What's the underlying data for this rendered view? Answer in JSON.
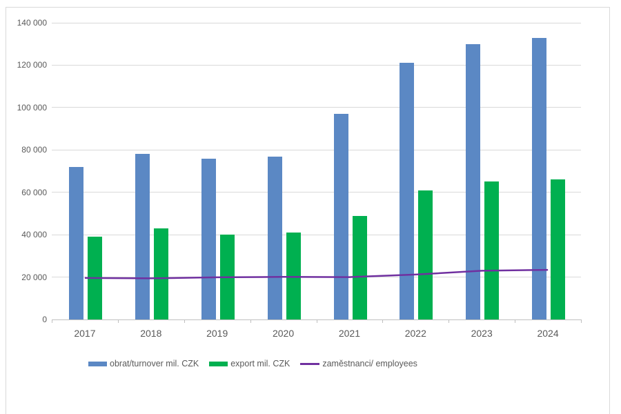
{
  "chart_data": {
    "type": "bar",
    "subtype": "grouped-bar-with-line-combo",
    "title": "",
    "categories": [
      "2017",
      "2018",
      "2019",
      "2020",
      "2021",
      "2022",
      "2023",
      "2024"
    ],
    "series": [
      {
        "name": "obrat/turnover mil. CZK",
        "kind": "bar",
        "color": "#5b88c4",
        "values": [
          72000,
          78000,
          76000,
          77000,
          97000,
          121000,
          130000,
          133000
        ]
      },
      {
        "name": "export mil. CZK",
        "kind": "bar",
        "color": "#00b050",
        "values": [
          39000,
          43000,
          40000,
          41000,
          49000,
          61000,
          65000,
          66000
        ]
      },
      {
        "name": "zaměstnanci/ employees",
        "kind": "line",
        "color": "#7030a0",
        "values": [
          19600,
          19400,
          19900,
          20100,
          20000,
          21200,
          23000,
          23400
        ]
      }
    ],
    "y_axis": {
      "min": 0,
      "max": 140000,
      "step": 20000,
      "tick_labels": [
        "0",
        "20 000",
        "40 000",
        "60 000",
        "80 000",
        "100 000",
        "120 000",
        "140 000"
      ]
    },
    "x_axis": {
      "tick_labels": [
        "2017",
        "2018",
        "2019",
        "2020",
        "2021",
        "2022",
        "2023",
        "2024"
      ]
    },
    "grid": true,
    "legend_position": "bottom",
    "colors": {
      "gridline": "#d9d9d9",
      "axis_line": "#bfbfbf",
      "tick_text": "#595959",
      "frame_border": "#d9d9d9",
      "background": "#ffffff"
    }
  }
}
